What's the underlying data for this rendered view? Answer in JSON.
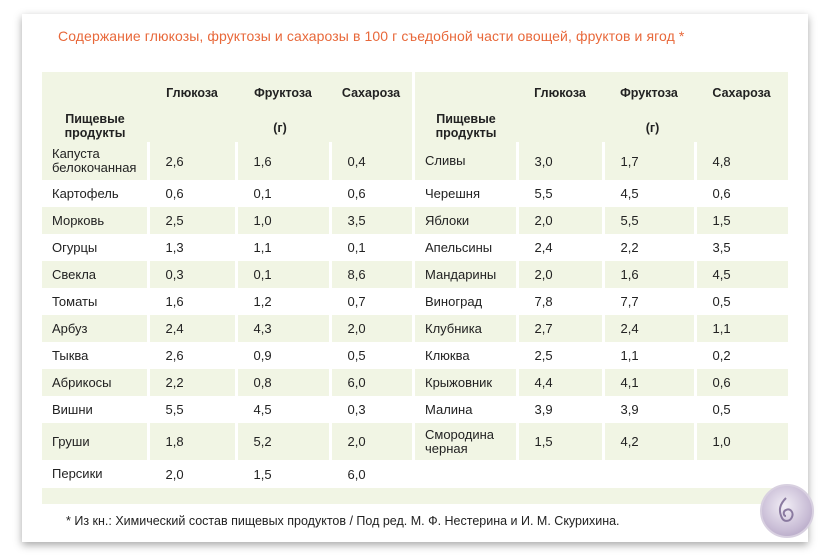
{
  "title": "Содержание глюкозы, фруктозы и сахарозы в 100 г съедобной части овощей, фруктов и ягод *",
  "headers": {
    "product_line1": "Пищевые",
    "product_line2": "продукты",
    "glucose": "Глюкоза",
    "fructose": "Фруктоза",
    "sucrose": "Сахароза",
    "unit": "(г)"
  },
  "left": [
    {
      "name": "Капуста белокочанная",
      "glucose": "2,6",
      "fructose": "1,6",
      "sucrose": "0,4"
    },
    {
      "name": "Картофель",
      "glucose": "0,6",
      "fructose": "0,1",
      "sucrose": "0,6"
    },
    {
      "name": "Морковь",
      "glucose": "2,5",
      "fructose": "1,0",
      "sucrose": "3,5"
    },
    {
      "name": "Огурцы",
      "glucose": "1,3",
      "fructose": "1,1",
      "sucrose": "0,1"
    },
    {
      "name": "Свекла",
      "glucose": "0,3",
      "fructose": "0,1",
      "sucrose": "8,6"
    },
    {
      "name": "Томаты",
      "glucose": "1,6",
      "fructose": "1,2",
      "sucrose": "0,7"
    },
    {
      "name": "Арбуз",
      "glucose": "2,4",
      "fructose": "4,3",
      "sucrose": "2,0"
    },
    {
      "name": "Тыква",
      "glucose": "2,6",
      "fructose": "0,9",
      "sucrose": "0,5"
    },
    {
      "name": "Абрикосы",
      "glucose": "2,2",
      "fructose": "0,8",
      "sucrose": "6,0"
    },
    {
      "name": "Вишни",
      "glucose": "5,5",
      "fructose": "4,5",
      "sucrose": "0,3"
    },
    {
      "name": "Груши",
      "glucose": "1,8",
      "fructose": "5,2",
      "sucrose": "2,0"
    },
    {
      "name": "Персики",
      "glucose": "2,0",
      "fructose": "1,5",
      "sucrose": "6,0"
    }
  ],
  "right": [
    {
      "name": "Сливы",
      "glucose": "3,0",
      "fructose": "1,7",
      "sucrose": "4,8"
    },
    {
      "name": "Черешня",
      "glucose": "5,5",
      "fructose": "4,5",
      "sucrose": "0,6"
    },
    {
      "name": "Яблоки",
      "glucose": "2,0",
      "fructose": "5,5",
      "sucrose": "1,5"
    },
    {
      "name": "Апельсины",
      "glucose": "2,4",
      "fructose": "2,2",
      "sucrose": "3,5"
    },
    {
      "name": "Мандарины",
      "glucose": "2,0",
      "fructose": "1,6",
      "sucrose": "4,5"
    },
    {
      "name": "Виноград",
      "glucose": "7,8",
      "fructose": "7,7",
      "sucrose": "0,5"
    },
    {
      "name": "Клубника",
      "glucose": "2,7",
      "fructose": "2,4",
      "sucrose": "1,1"
    },
    {
      "name": "Клюква",
      "glucose": "2,5",
      "fructose": "1,1",
      "sucrose": "0,2"
    },
    {
      "name": "Крыжовник",
      "glucose": "4,4",
      "fructose": "4,1",
      "sucrose": "0,6"
    },
    {
      "name": "Малина",
      "glucose": "3,9",
      "fructose": "3,9",
      "sucrose": "0,5"
    },
    {
      "name": "Смородина черная",
      "glucose": "1,5",
      "fructose": "4,2",
      "sucrose": "1,0"
    }
  ],
  "footnote": "* Из кн.: Химический состав пищевых продуктов / Под ред. М. Ф. Нестерина и И. М. Скурихина.",
  "colors": {
    "title": "#e8683a",
    "shade": "#f1f5e4"
  }
}
